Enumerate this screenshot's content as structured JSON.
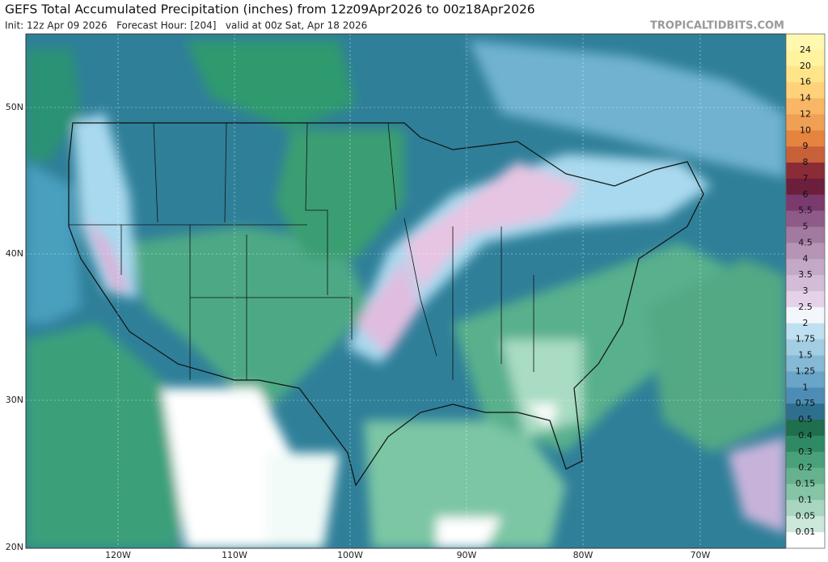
{
  "header": {
    "title": "GEFS Total Accumulated Precipitation (inches) from 12z09Apr2026 to 00z18Apr2026",
    "init": "Init: 12z Apr 09 2026   Forecast Hour: [204]   valid at 00z Sat, Apr 18 2026",
    "site": "TROPICALTIDBITS.COM"
  },
  "map": {
    "lat_labels": [
      "50N",
      "40N",
      "30N",
      "20N"
    ],
    "lon_labels": [
      "120W",
      "110W",
      "100W",
      "90W",
      "80W",
      "70W"
    ]
  },
  "colorbar": {
    "labels": [
      "24",
      "20",
      "16",
      "14",
      "12",
      "10",
      "9",
      "8",
      "7",
      "6",
      "5.5",
      "5",
      "4.5",
      "4",
      "3.5",
      "3",
      "2.5",
      "2",
      "1.75",
      "1.5",
      "1.25",
      "1",
      "0.75",
      "0.5",
      "0.4",
      "0.3",
      "0.2",
      "0.15",
      "0.1",
      "0.05",
      "0.01"
    ]
  }
}
